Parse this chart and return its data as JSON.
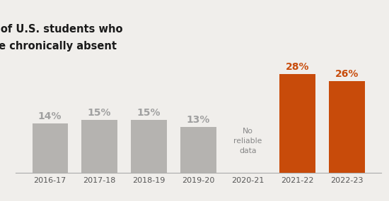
{
  "categories": [
    "2016-17",
    "2017-18",
    "2018-19",
    "2019-20",
    "2020-21",
    "2021-22",
    "2022-23"
  ],
  "values": [
    14,
    15,
    15,
    13,
    null,
    28,
    26
  ],
  "bar_colors": [
    "#b5b3b0",
    "#b5b3b0",
    "#b5b3b0",
    "#b5b3b0",
    null,
    "#c84b0a",
    "#c84b0a"
  ],
  "label_colors": [
    "#a0a0a0",
    "#a0a0a0",
    "#a0a0a0",
    "#a0a0a0",
    null,
    "#c84b0a",
    "#c84b0a"
  ],
  "title_line1": "% of U.S. students who",
  "title_line2": "are chronically absent",
  "no_data_label": "No\nreliable\ndata",
  "no_data_index": 4,
  "background_color": "#f0eeeb",
  "title_fontsize": 10.5,
  "label_fontsize": 10,
  "tick_fontsize": 8,
  "ylim": [
    0,
    33
  ]
}
